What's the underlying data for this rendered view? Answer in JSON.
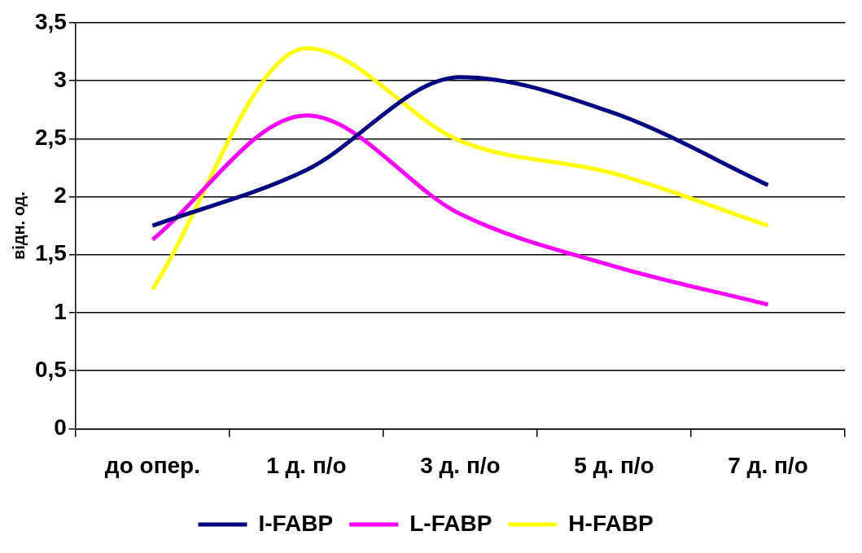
{
  "chart_data": {
    "type": "line",
    "ylabel": "відн. од.",
    "categories": [
      "до опер.",
      "1 д. п/о",
      "3 д. п/о",
      "5 д. п/о",
      "7 д. п/о"
    ],
    "series": [
      {
        "name": "I-FABP",
        "color": "#000080",
        "values": [
          1.75,
          2.23,
          3.03,
          2.72,
          2.1
        ]
      },
      {
        "name": "L-FABP",
        "color": "#ff00ff",
        "values": [
          1.63,
          2.7,
          1.85,
          1.4,
          1.07
        ]
      },
      {
        "name": "H-FABP",
        "color": "#ffff00",
        "values": [
          1.2,
          3.28,
          2.48,
          2.2,
          1.75
        ]
      }
    ],
    "ylim": [
      0,
      3.5
    ],
    "yticks": [
      {
        "value": 0,
        "label": "0"
      },
      {
        "value": 0.5,
        "label": "0,5"
      },
      {
        "value": 1,
        "label": "1"
      },
      {
        "value": 1.5,
        "label": "1,5"
      },
      {
        "value": 2,
        "label": "2"
      },
      {
        "value": 2.5,
        "label": "2,5"
      },
      {
        "value": 3,
        "label": "3"
      },
      {
        "value": 3.5,
        "label": "3,5"
      }
    ],
    "grid": "y",
    "legend": "bottom",
    "marker": "none",
    "line_style": "solid"
  }
}
